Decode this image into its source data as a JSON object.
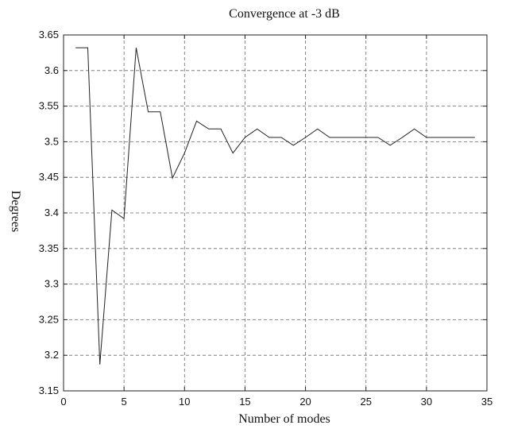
{
  "chart_data": {
    "type": "line",
    "title": "Convergence at -3 dB",
    "xlabel": "Number of modes",
    "ylabel": "Degrees",
    "xlim": [
      0,
      35
    ],
    "ylim": [
      3.15,
      3.65
    ],
    "x_ticks": [
      "0",
      "5",
      "10",
      "15",
      "20",
      "25",
      "30",
      "35"
    ],
    "y_ticks": [
      "3.15",
      "3.2",
      "3.25",
      "3.3",
      "3.35",
      "3.4",
      "3.45",
      "3.5",
      "3.55",
      "3.6",
      "3.65"
    ],
    "grid": true,
    "series": [
      {
        "x": [
          1,
          2,
          3,
          4,
          5,
          6,
          7,
          8,
          9,
          10,
          11,
          12,
          13,
          14,
          15,
          16,
          17,
          18,
          19,
          20,
          21,
          22,
          23,
          24,
          25,
          26,
          27,
          28,
          29,
          30,
          31,
          32,
          33,
          34
        ],
        "values": [
          3.632,
          3.632,
          3.187,
          3.404,
          3.392,
          3.632,
          3.542,
          3.542,
          3.449,
          3.484,
          3.529,
          3.518,
          3.518,
          3.484,
          3.506,
          3.518,
          3.506,
          3.506,
          3.495,
          3.506,
          3.518,
          3.506,
          3.506,
          3.506,
          3.506,
          3.506,
          3.495,
          3.506,
          3.518,
          3.506,
          3.506,
          3.506,
          3.506,
          3.506
        ]
      }
    ]
  }
}
